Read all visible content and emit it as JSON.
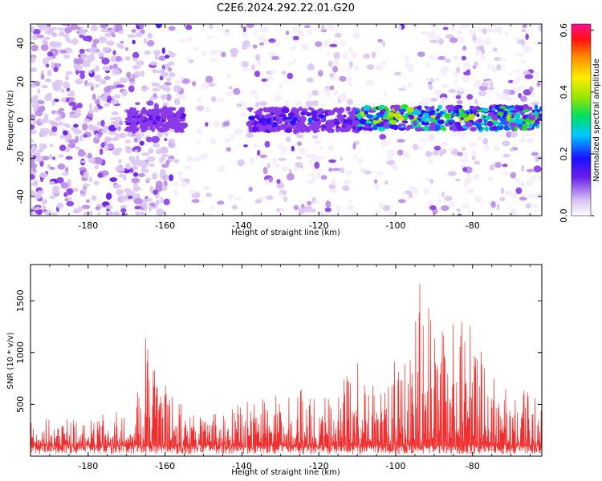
{
  "title": "C2E6.2024.292.22.01.G20",
  "chart_data": [
    {
      "type": "heatmap",
      "xlabel": "Height of straight line (km)",
      "ylabel": "Frequency (Hz)",
      "xlim": [
        -195,
        -62
      ],
      "ylim": [
        -50,
        50
      ],
      "xticks": [
        -180,
        -160,
        -140,
        -120,
        -100,
        -80
      ],
      "xtick_labels": [
        "-180",
        "-160",
        "-140",
        "-120",
        "-100",
        "-80"
      ],
      "yticks": [
        -40,
        -20,
        0,
        20,
        40
      ],
      "ytick_labels": [
        "-40",
        "-20",
        "0",
        "20",
        "40"
      ],
      "colorbar": {
        "label": "Normalized spectral amplitude",
        "range": [
          0,
          0.62
        ],
        "ticks": [
          0.0,
          0.2,
          0.4,
          0.6
        ],
        "tick_labels": [
          "0.0",
          "0.2",
          "0.4",
          "0.6"
        ]
      },
      "features": [
        {
          "x": [
            -170,
            -155
          ],
          "freq": 0,
          "level": 0.25
        },
        {
          "x": [
            -138,
            -110
          ],
          "freq": 0,
          "level": 0.3
        },
        {
          "x": [
            -110,
            -62
          ],
          "freq": 1,
          "level": 0.55
        }
      ]
    },
    {
      "type": "line",
      "xlabel": "Height of straight line (km)",
      "ylabel": "SNR (10 * v/v)",
      "xlim": [
        -195,
        -62
      ],
      "ylim": [
        0,
        1850
      ],
      "xticks": [
        -180,
        -160,
        -140,
        -120,
        -100,
        -80
      ],
      "xtick_labels": [
        "-180",
        "-160",
        "-140",
        "-120",
        "-100",
        "-80"
      ],
      "yticks": [
        500,
        1000,
        1500
      ],
      "ytick_labels": [
        "500",
        "1000",
        "1500"
      ],
      "color": "#f03030",
      "envelope": [
        {
          "x": -195,
          "y": 350
        },
        {
          "x": -180,
          "y": 380
        },
        {
          "x": -170,
          "y": 450
        },
        {
          "x": -166,
          "y": 700
        },
        {
          "x": -165,
          "y": 1150
        },
        {
          "x": -162,
          "y": 780
        },
        {
          "x": -155,
          "y": 500
        },
        {
          "x": -145,
          "y": 450
        },
        {
          "x": -135,
          "y": 600
        },
        {
          "x": -125,
          "y": 650
        },
        {
          "x": -115,
          "y": 700
        },
        {
          "x": -110,
          "y": 950
        },
        {
          "x": -104,
          "y": 700
        },
        {
          "x": -98,
          "y": 1150
        },
        {
          "x": -95,
          "y": 1400
        },
        {
          "x": -94,
          "y": 1850
        },
        {
          "x": -90,
          "y": 1250
        },
        {
          "x": -84,
          "y": 1350
        },
        {
          "x": -82,
          "y": 1550
        },
        {
          "x": -78,
          "y": 1150
        },
        {
          "x": -72,
          "y": 750
        },
        {
          "x": -66,
          "y": 700
        },
        {
          "x": -62,
          "y": 600
        }
      ]
    }
  ]
}
